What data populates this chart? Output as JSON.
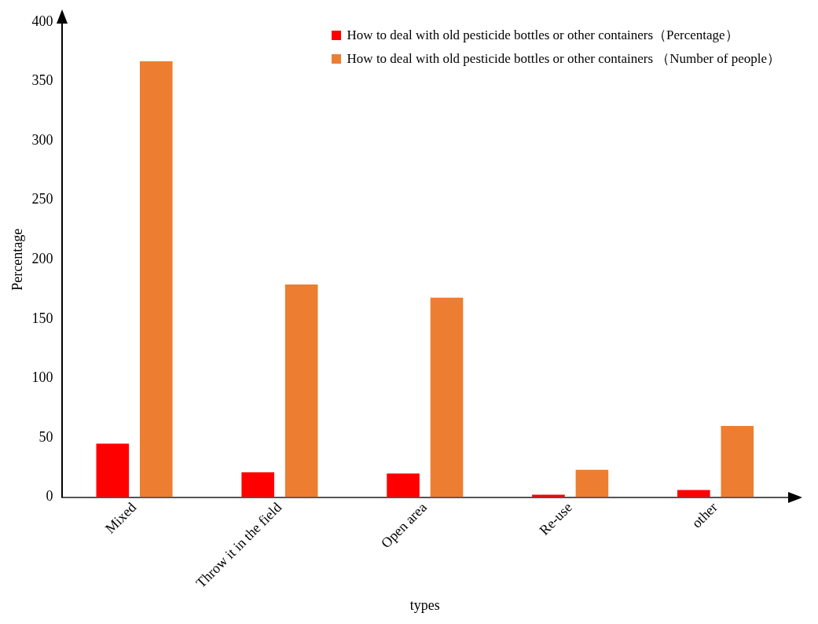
{
  "chart_data": {
    "type": "bar",
    "xlabel": "types",
    "ylabel": "Percentage",
    "categories": [
      "Mixed",
      "Throw it in the field",
      "Open area",
      "Re-use",
      "other"
    ],
    "series": [
      {
        "name": "How to deal with old pesticide bottles or other containers（Percentage）",
        "color": "#ff0000",
        "values": [
          45,
          21,
          20,
          2,
          6
        ]
      },
      {
        "name": "How to deal with old pesticide bottles or other containers （Number of people）",
        "color": "#ed7d31",
        "values": [
          367,
          179,
          168,
          23,
          60
        ]
      }
    ],
    "ylim": [
      0,
      400
    ],
    "yticks": [
      0,
      50,
      100,
      150,
      200,
      250,
      300,
      350,
      400
    ],
    "grid": false,
    "legend": "top right"
  }
}
